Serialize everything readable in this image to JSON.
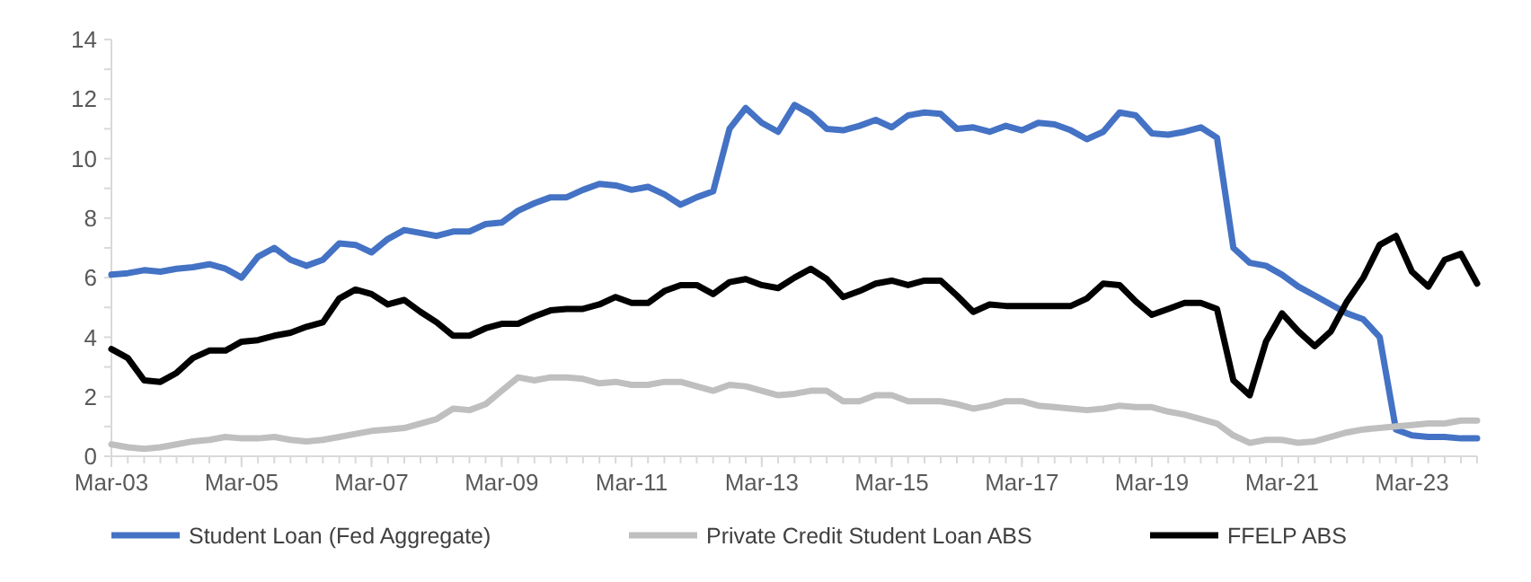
{
  "chart_data": {
    "type": "line",
    "x": [
      "2003-03",
      "2003-06",
      "2003-09",
      "2003-12",
      "2004-03",
      "2004-06",
      "2004-09",
      "2004-12",
      "2005-03",
      "2005-06",
      "2005-09",
      "2005-12",
      "2006-03",
      "2006-06",
      "2006-09",
      "2006-12",
      "2007-03",
      "2007-06",
      "2007-09",
      "2007-12",
      "2008-03",
      "2008-06",
      "2008-09",
      "2008-12",
      "2009-03",
      "2009-06",
      "2009-09",
      "2009-12",
      "2010-03",
      "2010-06",
      "2010-09",
      "2010-12",
      "2011-03",
      "2011-06",
      "2011-09",
      "2011-12",
      "2012-03",
      "2012-06",
      "2012-09",
      "2012-12",
      "2013-03",
      "2013-06",
      "2013-09",
      "2013-12",
      "2014-03",
      "2014-06",
      "2014-09",
      "2014-12",
      "2015-03",
      "2015-06",
      "2015-09",
      "2015-12",
      "2016-03",
      "2016-06",
      "2016-09",
      "2016-12",
      "2017-03",
      "2017-06",
      "2017-09",
      "2017-12",
      "2018-03",
      "2018-06",
      "2018-09",
      "2018-12",
      "2019-03",
      "2019-06",
      "2019-09",
      "2019-12",
      "2020-03",
      "2020-06",
      "2020-09",
      "2020-12",
      "2021-03",
      "2021-06",
      "2021-09",
      "2021-12",
      "2022-03",
      "2022-06",
      "2022-09",
      "2022-12",
      "2023-03",
      "2023-06",
      "2023-09",
      "2023-12",
      "2024-03"
    ],
    "series": [
      {
        "name": "Student Loan (Fed Aggregate)",
        "color": "#4472c4",
        "values": [
          6.1,
          6.15,
          6.25,
          6.2,
          6.3,
          6.35,
          6.45,
          6.3,
          6.0,
          6.7,
          7.0,
          6.6,
          6.4,
          6.6,
          7.15,
          7.1,
          6.85,
          7.3,
          7.6,
          7.5,
          7.4,
          7.55,
          7.55,
          7.8,
          7.85,
          8.25,
          8.5,
          8.7,
          8.7,
          8.95,
          9.15,
          9.1,
          8.95,
          9.05,
          8.8,
          8.45,
          8.7,
          8.9,
          11.0,
          11.7,
          11.2,
          10.9,
          11.8,
          11.5,
          11.0,
          10.95,
          11.1,
          11.3,
          11.05,
          11.45,
          11.55,
          11.5,
          11.0,
          11.05,
          10.9,
          11.1,
          10.95,
          11.2,
          11.15,
          10.95,
          10.65,
          10.9,
          11.55,
          11.45,
          10.85,
          10.8,
          10.9,
          11.05,
          10.7,
          7.0,
          6.5,
          6.4,
          6.1,
          5.7,
          5.4,
          5.1,
          4.8,
          4.6,
          4.0,
          0.9,
          0.7,
          0.65,
          0.65,
          0.6,
          0.6
        ]
      },
      {
        "name": "Private Credit Student Loan ABS",
        "color": "#bfbfbf",
        "values": [
          0.4,
          0.3,
          0.25,
          0.3,
          0.4,
          0.5,
          0.55,
          0.65,
          0.6,
          0.6,
          0.65,
          0.55,
          0.5,
          0.55,
          0.65,
          0.75,
          0.85,
          0.9,
          0.95,
          1.1,
          1.25,
          1.6,
          1.55,
          1.75,
          2.2,
          2.65,
          2.55,
          2.65,
          2.65,
          2.6,
          2.45,
          2.5,
          2.4,
          2.4,
          2.5,
          2.5,
          2.35,
          2.2,
          2.4,
          2.35,
          2.2,
          2.05,
          2.1,
          2.2,
          2.2,
          1.85,
          1.85,
          2.05,
          2.05,
          1.85,
          1.85,
          1.85,
          1.75,
          1.6,
          1.7,
          1.85,
          1.85,
          1.7,
          1.65,
          1.6,
          1.55,
          1.6,
          1.7,
          1.65,
          1.65,
          1.5,
          1.4,
          1.25,
          1.1,
          0.7,
          0.45,
          0.55,
          0.55,
          0.45,
          0.5,
          0.65,
          0.8,
          0.9,
          0.95,
          1.0,
          1.05,
          1.1,
          1.1,
          1.2,
          1.2
        ]
      },
      {
        "name": "FFELP ABS",
        "color": "#000000",
        "values": [
          3.6,
          3.3,
          2.55,
          2.5,
          2.8,
          3.3,
          3.55,
          3.55,
          3.85,
          3.9,
          4.05,
          4.15,
          4.35,
          4.5,
          5.3,
          5.6,
          5.45,
          5.1,
          5.25,
          4.85,
          4.5,
          4.05,
          4.05,
          4.3,
          4.45,
          4.45,
          4.7,
          4.9,
          4.95,
          4.95,
          5.1,
          5.35,
          5.15,
          5.15,
          5.55,
          5.75,
          5.75,
          5.45,
          5.85,
          5.95,
          5.75,
          5.65,
          6.0,
          6.3,
          5.95,
          5.35,
          5.55,
          5.8,
          5.9,
          5.75,
          5.9,
          5.9,
          5.4,
          4.85,
          5.1,
          5.05,
          5.05,
          5.05,
          5.05,
          5.05,
          5.3,
          5.8,
          5.75,
          5.2,
          4.75,
          4.95,
          5.15,
          5.15,
          4.95,
          2.55,
          2.05,
          3.85,
          4.8,
          4.2,
          3.7,
          4.2,
          5.2,
          6.0,
          7.1,
          7.4,
          6.2,
          5.7,
          6.6,
          6.8,
          5.8
        ]
      }
    ],
    "xlim": [
      "2003-03",
      "2024-03"
    ],
    "xticks": [
      {
        "value": "2003-03",
        "label": "Mar-03"
      },
      {
        "value": "2005-03",
        "label": "Mar-05"
      },
      {
        "value": "2007-03",
        "label": "Mar-07"
      },
      {
        "value": "2009-03",
        "label": "Mar-09"
      },
      {
        "value": "2011-03",
        "label": "Mar-11"
      },
      {
        "value": "2013-03",
        "label": "Mar-13"
      },
      {
        "value": "2015-03",
        "label": "Mar-15"
      },
      {
        "value": "2017-03",
        "label": "Mar-17"
      },
      {
        "value": "2019-03",
        "label": "Mar-19"
      },
      {
        "value": "2021-03",
        "label": "Mar-21"
      },
      {
        "value": "2023-03",
        "label": "Mar-23"
      }
    ],
    "ylim": [
      0,
      14
    ],
    "yticks": [
      0,
      {
        "value": 1,
        "label": null
      },
      2,
      {
        "value": 3,
        "label": null
      },
      4,
      {
        "value": 5,
        "label": null
      },
      6,
      {
        "value": 7,
        "label": null
      },
      8,
      {
        "value": 9,
        "label": null
      },
      10,
      {
        "value": 11,
        "label": null
      },
      12,
      {
        "value": 13,
        "label": null
      },
      14
    ],
    "legend": "bottom",
    "marker": "none",
    "line_style": "solid",
    "grid": false
  }
}
